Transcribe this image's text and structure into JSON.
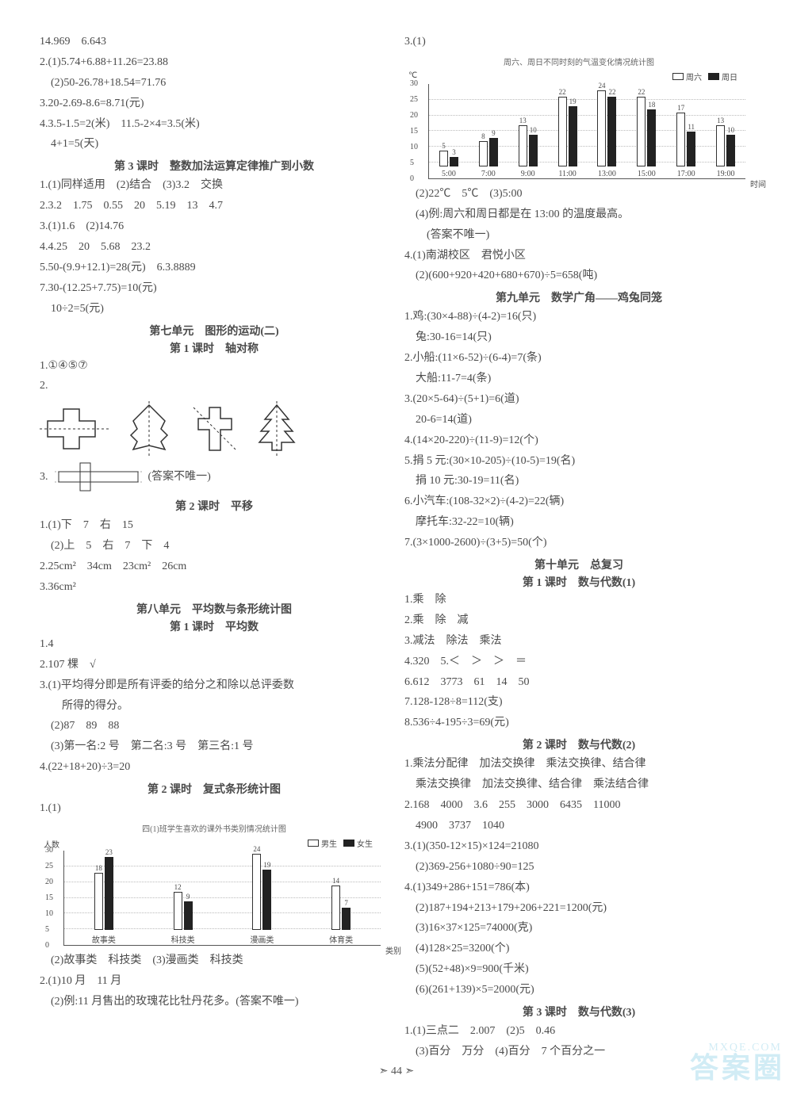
{
  "left": {
    "l1": "14.969　6.643",
    "l2": "2.(1)5.74+6.88+11.26=23.88",
    "l3": "　(2)50-26.78+18.54=71.76",
    "l4": "3.20-2.69-8.6=8.71(元)",
    "l5": "4.3.5-1.5=2(米)　11.5-2×4=3.5(米)",
    "l6": "　4+1=5(天)",
    "h1": "第 3 课时　整数加法运算定律推广到小数",
    "l7": "1.(1)同样适用　(2)结合　(3)3.2　交换",
    "l8": "2.3.2　1.75　0.55　20　5.19　13　4.7",
    "l9": "3.(1)1.6　(2)14.76",
    "l10": "4.4.25　20　5.68　23.2",
    "l11": "5.50-(9.9+12.1)=28(元)　6.3.8889",
    "l12": "7.30-(12.25+7.75)=10(元)",
    "l13": "　10÷2=5(元)",
    "h2": "第七单元　图形的运动(二)",
    "h2b": "第 1 课时　轴对称",
    "l14": "1.①④⑤⑦",
    "l15": "2.",
    "l16": "3.　　　　　(答案不唯一)",
    "h3": "第 2 课时　平移",
    "l17": "1.(1)下　7　右　15",
    "l18": "　(2)上　5　右　7　下　4",
    "l19": "2.25cm²　34cm　23cm²　26cm",
    "l20": "3.36cm²",
    "h4": "第八单元　平均数与条形统计图",
    "h4b": "第 1 课时　平均数",
    "l21": "1.4",
    "l22": "2.107 棵　√",
    "l23": "3.(1)平均得分即是所有评委的给分之和除以总评委数",
    "l24": "　　所得的得分。",
    "l25": "　(2)87　89　88",
    "l26": "　(3)第一名:2 号　第二名:3 号　第三名:1 号",
    "l27": "4.(22+18+20)÷3=20",
    "h5": "第 2 课时　复式条形统计图",
    "l28": "1.(1)",
    "chart1": {
      "title": "四(1)班学生喜欢的课外书类别情况统计图",
      "y_axis_label": "人数",
      "x_axis_label": "类别",
      "ymax": 30,
      "ytick_step": 5,
      "categories": [
        "故事类",
        "科技类",
        "漫画类",
        "体育类"
      ],
      "series": [
        {
          "name": "男生",
          "color": "#ffffff",
          "border": "#333333",
          "values": [
            18,
            12,
            24,
            14
          ]
        },
        {
          "name": "女生",
          "color": "#222222",
          "border": "#222222",
          "values": [
            23,
            9,
            19,
            7
          ]
        }
      ]
    },
    "l29": "　(2)故事类　科技类　(3)漫画类　科技类",
    "l30": "2.(1)10 月　11 月",
    "l31": "　(2)例:11 月售出的玫瑰花比牡丹花多。(答案不唯一)"
  },
  "right": {
    "l1": "3.(1)",
    "chart2": {
      "title": "周六、周日不同时刻的气温变化情况统计图",
      "y_axis_label": "℃",
      "x_axis_label": "时间",
      "ymax": 30,
      "ytick_step": 5,
      "categories": [
        "5:00",
        "7:00",
        "9:00",
        "11:00",
        "13:00",
        "15:00",
        "17:00",
        "19:00"
      ],
      "series": [
        {
          "name": "周六",
          "color": "#ffffff",
          "border": "#333333",
          "values": [
            5,
            8,
            13,
            22,
            24,
            22,
            17,
            13
          ]
        },
        {
          "name": "周日",
          "color": "#222222",
          "border": "#222222",
          "values": [
            3,
            9,
            10,
            19,
            22,
            18,
            11,
            10
          ]
        }
      ]
    },
    "l2": "　(2)22℃　5℃　(3)5:00",
    "l3": "　(4)例:周六和周日都是在 13:00 的温度最高。",
    "l4": "　　(答案不唯一)",
    "l5": "4.(1)南湖校区　君悦小区",
    "l6": "　(2)(600+920+420+680+670)÷5=658(吨)",
    "h1": "第九单元　数学广角——鸡兔同笼",
    "l7": "1.鸡:(30×4-88)÷(4-2)=16(只)",
    "l8": "　兔:30-16=14(只)",
    "l9": "2.小船:(11×6-52)÷(6-4)=7(条)",
    "l10": "　大船:11-7=4(条)",
    "l11": "3.(20×5-64)÷(5+1)=6(道)",
    "l12": "　20-6=14(道)",
    "l13": "4.(14×20-220)÷(11-9)=12(个)",
    "l14": "5.捐 5 元:(30×10-205)÷(10-5)=19(名)",
    "l15": "　捐 10 元:30-19=11(名)",
    "l16": "6.小汽车:(108-32×2)÷(4-2)=22(辆)",
    "l17": "　摩托车:32-22=10(辆)",
    "l18": "7.(3×1000-2600)÷(3+5)=50(个)",
    "h2": "第十单元　总复习",
    "h2b": "第 1 课时　数与代数(1)",
    "l19": "1.乘　除",
    "l20": "2.乘　除　减",
    "l21": "3.减法　除法　乘法",
    "l22": "4.320　5.＜　＞　＞　＝",
    "l23": "6.612　3773　61　14　50",
    "l24": "7.128-128÷8=112(支)",
    "l25": "8.536÷4-195÷3=69(元)",
    "h3": "第 2 课时　数与代数(2)",
    "l26": "1.乘法分配律　加法交换律　乘法交换律、结合律",
    "l27": "　乘法交换律　加法交换律、结合律　乘法结合律",
    "l28": "2.168　4000　3.6　255　3000　6435　11000",
    "l29": "　4900　3737　1040",
    "l30": "3.(1)(350-12×15)×124=21080",
    "l31": "　(2)369-256+1080÷90=125",
    "l32": "4.(1)349+286+151=786(本)",
    "l33": "　(2)187+194+213+179+206+221=1200(元)",
    "l34": "　(3)16×37×125=74000(克)",
    "l35": "　(4)128×25=3200(个)",
    "l36": "　(5)(52+48)×9=900(千米)",
    "l37": "　(6)(261+139)×5=2000(元)",
    "h4": "第 3 课时　数与代数(3)",
    "l38": "1.(1)三点二　2.007　(2)5　0.46",
    "l39": "　(3)百分　万分　(4)百分　7 个百分之一"
  },
  "pagenum": "44",
  "watermark_big": "答案圈",
  "watermark_small": "MXQE.COM"
}
